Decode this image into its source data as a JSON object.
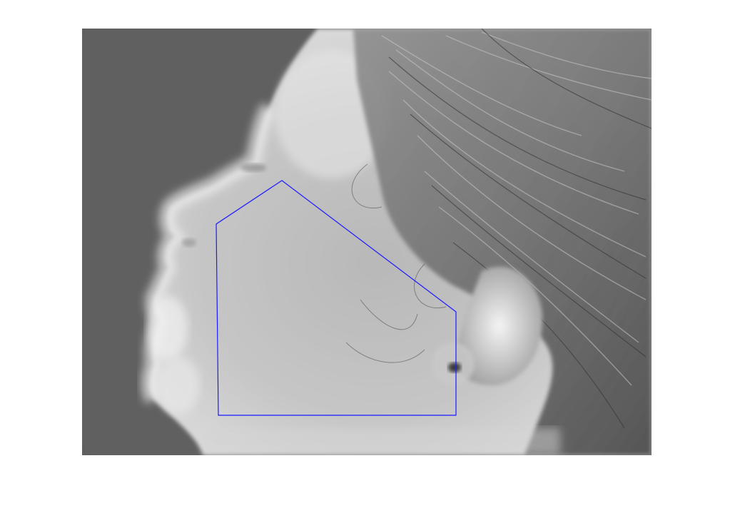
{
  "figure": {
    "description_icon": "thermal-face-image-icon"
  },
  "image": {
    "colors": {
      "background": "#5c5c5c",
      "skin_light": "#d9d9d9",
      "skin_mid": "#b2b2b2",
      "hair_dark": "#4a4a4a",
      "hair_light": "#a8a8a8",
      "overlay": "#0000ff"
    }
  },
  "roi": {
    "color": "#1a1aff"
  }
}
